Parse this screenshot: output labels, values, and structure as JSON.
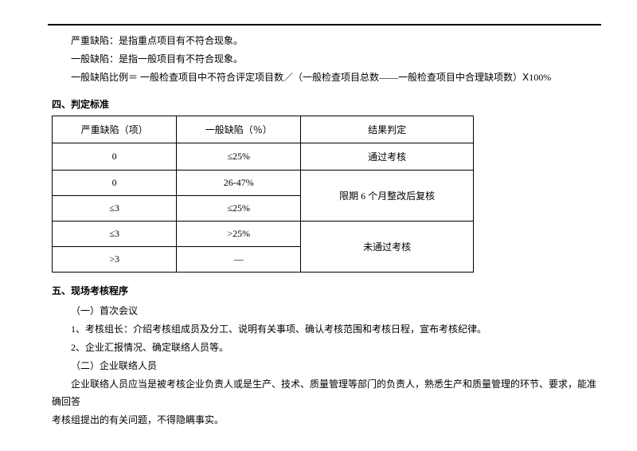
{
  "definitions": {
    "serious_defect": "严重缺陷：是指重点项目有不符合现象。",
    "general_defect": "一般缺陷：是指一般项目有不符合现象。",
    "ratio_formula": "一般缺陷比例＝ 一般检查项目中不符合评定项目数／（一般检查项目总数——一般检查项目中合理缺项数）Ⅹ100%"
  },
  "section4": {
    "title": "四、判定标准",
    "table": {
      "headers": [
        "严重缺陷（项）",
        "一般缺陷（％）",
        "结果判定"
      ],
      "rows": [
        {
          "col1": "0",
          "col2": "≤25%",
          "col3": "通过考核"
        },
        {
          "col1": "0",
          "col2": "26-47%",
          "col3": "限期 6 个月整改后复核"
        },
        {
          "col1": "≤3",
          "col2": "≤25%"
        },
        {
          "col1": "≤3",
          "col2": ">25%",
          "col3": "未通过考核"
        },
        {
          "col1": ">3",
          "col2": "—"
        }
      ]
    }
  },
  "section5": {
    "title": "五、现场考核程序",
    "item1_title": "（一）首次会议",
    "item1_line1": "1、考核组长：介绍考核组成员及分工、说明有关事项、确认考核范围和考核日程，宣布考核纪律。",
    "item1_line2": "2、企业汇报情况、确定联络人员等。",
    "item2_title": "（二）企业联络人员",
    "item2_line1": "企业联络人员应当是被考核企业负责人或是生产、技术、质量管理等部门的负责人，熟悉生产和质量管理的环节、要求，能准确回答",
    "item2_line2": "考核组提出的有关问题，不得隐瞒事实。"
  }
}
